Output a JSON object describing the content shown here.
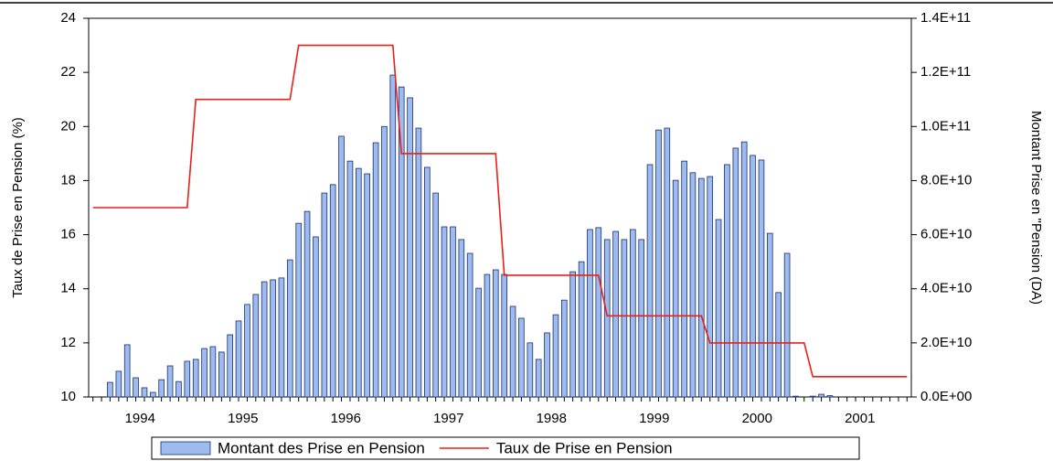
{
  "chart_data": {
    "type": "bar-line",
    "x": [
      1994.042,
      1994.125,
      1994.208,
      1994.292,
      1994.375,
      1994.458,
      1994.542,
      1994.625,
      1994.708,
      1994.792,
      1994.875,
      1994.958,
      1995.042,
      1995.125,
      1995.208,
      1995.292,
      1995.375,
      1995.458,
      1995.542,
      1995.625,
      1995.708,
      1995.792,
      1995.875,
      1995.958,
      1996.042,
      1996.125,
      1996.208,
      1996.292,
      1996.375,
      1996.458,
      1996.542,
      1996.625,
      1996.708,
      1996.792,
      1996.875,
      1996.958,
      1997.042,
      1997.125,
      1997.208,
      1997.292,
      1997.375,
      1997.458,
      1997.542,
      1997.625,
      1997.708,
      1997.792,
      1997.875,
      1997.958,
      1998.042,
      1998.125,
      1998.208,
      1998.292,
      1998.375,
      1998.458,
      1998.542,
      1998.625,
      1998.708,
      1998.792,
      1998.875,
      1998.958,
      1999.042,
      1999.125,
      1999.208,
      1999.292,
      1999.375,
      1999.458,
      1999.542,
      1999.625,
      1999.708,
      1999.792,
      1999.875,
      1999.958,
      2000.042,
      2000.125,
      2000.208,
      2000.292,
      2000.375,
      2000.458,
      2000.542,
      2000.625,
      2000.708,
      2000.792,
      2000.875,
      2000.958,
      2001.042,
      2001.125,
      2001.208,
      2001.292,
      2001.375,
      2001.458,
      2001.542,
      2001.625,
      2001.708,
      2001.792,
      2001.875,
      2001.958
    ],
    "xlim": [
      1994,
      2002
    ],
    "xticks": [
      {
        "value": 1994.5,
        "label": "1994"
      },
      {
        "value": 1995.5,
        "label": "1995"
      },
      {
        "value": 1996.5,
        "label": "1996"
      },
      {
        "value": 1997.5,
        "label": "1997"
      },
      {
        "value": 1998.5,
        "label": "1998"
      },
      {
        "value": 1999.5,
        "label": "1999"
      },
      {
        "value": 2000.5,
        "label": "2000"
      },
      {
        "value": 2001.5,
        "label": "2001"
      }
    ],
    "ylabel": "Taux de Prise en Pension (%)",
    "y2label": "Montant Prise en \"Pension (DA)",
    "ylim": [
      10,
      24
    ],
    "yticks": [
      10,
      12,
      14,
      16,
      18,
      20,
      22,
      24
    ],
    "y2lim": [
      0,
      140000000000
    ],
    "y2ticks": [
      {
        "value": 0,
        "label": "0.0E+00"
      },
      {
        "value": 20000000000,
        "label": "2.0E+10"
      },
      {
        "value": 40000000000,
        "label": "4.0E+10"
      },
      {
        "value": 60000000000,
        "label": "6.0E+10"
      },
      {
        "value": 80000000000,
        "label": "8.0E+10"
      },
      {
        "value": 100000000000,
        "label": "1.0E+11"
      },
      {
        "value": 120000000000,
        "label": "1.2E+11"
      },
      {
        "value": 140000000000,
        "label": "1.4E+11"
      }
    ],
    "legend": "bottom",
    "series": [
      {
        "name": "Montant des Prise en Pension",
        "kind": "bar",
        "axis": "y2",
        "color": "#9dbbee",
        "values": [
          null,
          null,
          5400000000,
          9500000000,
          19300000000,
          7100000000,
          3400000000,
          1700000000,
          6400000000,
          11500000000,
          5700000000,
          13200000000,
          13900000000,
          17900000000,
          18600000000,
          16600000000,
          23000000000,
          28100000000,
          34200000000,
          37900000000,
          42600000000,
          43300000000,
          44000000000,
          50700000000,
          64200000000,
          68600000000,
          59200000000,
          75400000000,
          78500000000,
          96400000000,
          87200000000,
          84500000000,
          82500000000,
          94000000000,
          100000000000,
          119000000000,
          114600000000,
          110600000000,
          99400000000,
          84900000000,
          75400000000,
          62900000000,
          62900000000,
          58200000000,
          53100000000,
          40200000000,
          45300000000,
          47000000000,
          45300000000,
          33500000000,
          29100000000,
          20000000000,
          13900000000,
          23700000000,
          30400000000,
          35800000000,
          46300000000,
          50000000000,
          61900000000,
          62600000000,
          58200000000,
          61200000000,
          58200000000,
          61900000000,
          58200000000,
          85900000000,
          98700000000,
          99400000000,
          80100000000,
          87200000000,
          82900000000,
          80800000000,
          81500000000,
          65600000000,
          85900000000,
          92000000000,
          94300000000,
          89300000000,
          87600000000,
          60500000000,
          38600000000,
          53100000000,
          300000000,
          null,
          300000000,
          1000000000,
          500000000,
          null,
          null,
          null,
          null,
          null,
          null,
          null,
          null,
          null
        ]
      },
      {
        "name": "Taux de Prise en Pension",
        "kind": "line",
        "axis": "y",
        "color": "#e8201a",
        "values": [
          17,
          17,
          17,
          17,
          17,
          17,
          17,
          17,
          17,
          17,
          17,
          17,
          21,
          21,
          21,
          21,
          21,
          21,
          21,
          21,
          21,
          21,
          21,
          21,
          23,
          23,
          23,
          23,
          23,
          23,
          23,
          23,
          23,
          23,
          23,
          23,
          19,
          19,
          19,
          19,
          19,
          19,
          19,
          19,
          19,
          19,
          19,
          19,
          14.5,
          14.5,
          14.5,
          14.5,
          14.5,
          14.5,
          14.5,
          14.5,
          14.5,
          14.5,
          14.5,
          14.5,
          13,
          13,
          13,
          13,
          13,
          13,
          13,
          13,
          13,
          13,
          13,
          13,
          12,
          12,
          12,
          12,
          12,
          12,
          12,
          12,
          12,
          12,
          12,
          12,
          10.75,
          10.75,
          10.75,
          10.75,
          10.75,
          10.75,
          10.75,
          10.75,
          10.75,
          10.75,
          10.75,
          10.75
        ]
      }
    ]
  }
}
